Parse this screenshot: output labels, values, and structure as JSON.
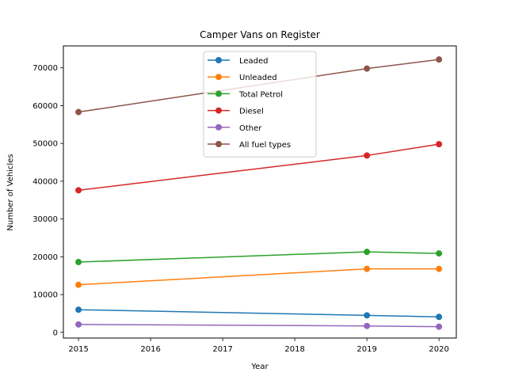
{
  "chart_data": {
    "type": "line",
    "title": "Camper Vans on Register",
    "xlabel": "Year",
    "ylabel": "Number of Vehicles",
    "x": [
      2015,
      2019,
      2020
    ],
    "xlim": [
      2014.79,
      2020.24
    ],
    "ylim": [
      -1500,
      75800
    ],
    "xticks": [
      2015,
      2016,
      2017,
      2018,
      2019,
      2020
    ],
    "yticks": [
      0,
      10000,
      20000,
      30000,
      40000,
      50000,
      60000,
      70000
    ],
    "grid": false,
    "legend_position": "top-center",
    "series": [
      {
        "name": "Leaded",
        "color": "#1f77b4",
        "values": [
          6000,
          4500,
          4100
        ]
      },
      {
        "name": "Unleaded",
        "color": "#ff7f0e",
        "values": [
          12600,
          16800,
          16800
        ]
      },
      {
        "name": "Total Petrol",
        "color": "#2ca02c",
        "values": [
          18600,
          21300,
          20900
        ]
      },
      {
        "name": "Diesel",
        "color": "#d62728",
        "values": [
          37600,
          46800,
          49800
        ]
      },
      {
        "name": "Other",
        "color": "#9467bd",
        "values": [
          2100,
          1700,
          1500
        ]
      },
      {
        "name": "All fuel types",
        "color": "#8c564b",
        "values": [
          58300,
          69800,
          72200
        ]
      }
    ]
  }
}
